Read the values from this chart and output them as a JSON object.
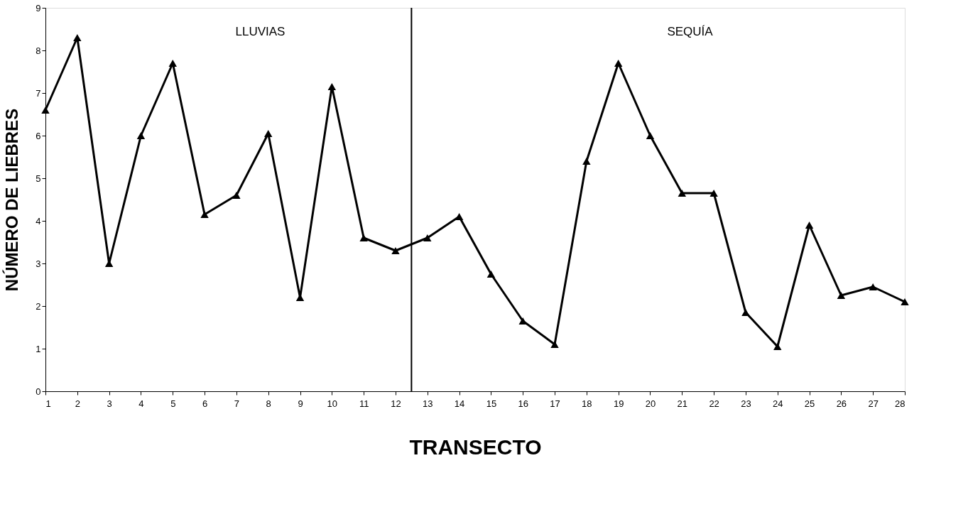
{
  "chart_data": {
    "type": "line",
    "xlabel": "TRANSECTO",
    "ylabel": "NÚMERO DE LIEBRES",
    "x": [
      1,
      2,
      3,
      4,
      5,
      6,
      7,
      8,
      9,
      10,
      11,
      12,
      13,
      14,
      15,
      16,
      17,
      18,
      19,
      20,
      21,
      22,
      23,
      24,
      25,
      26,
      27,
      28
    ],
    "series": [
      {
        "color": "#000000",
        "values": [
          6.6,
          8.3,
          3.0,
          6.0,
          7.7,
          4.15,
          4.6,
          6.05,
          2.2,
          7.15,
          3.6,
          3.3,
          3.6,
          4.1,
          2.75,
          1.65,
          1.1,
          5.4,
          7.7,
          6.0,
          4.65,
          4.65,
          1.85,
          1.05,
          3.9,
          2.25,
          2.45,
          2.1
        ]
      }
    ],
    "xlim": [
      1,
      28
    ],
    "xticks": [
      1,
      2,
      3,
      4,
      5,
      6,
      7,
      8,
      9,
      10,
      11,
      12,
      13,
      14,
      15,
      16,
      17,
      18,
      19,
      20,
      21,
      22,
      23,
      24,
      25,
      26,
      27,
      28
    ],
    "ylim": [
      0,
      9
    ],
    "yticks": [
      0,
      1,
      2,
      3,
      4,
      5,
      6,
      7,
      8,
      9
    ],
    "ref_lines": [
      {
        "axis": "x",
        "value": 12.5,
        "color": "#000000"
      }
    ],
    "annotations": [
      "LLUVIAS",
      "SEQUÍA"
    ],
    "marker": "triangle",
    "line_style": "solid",
    "grid": false
  }
}
